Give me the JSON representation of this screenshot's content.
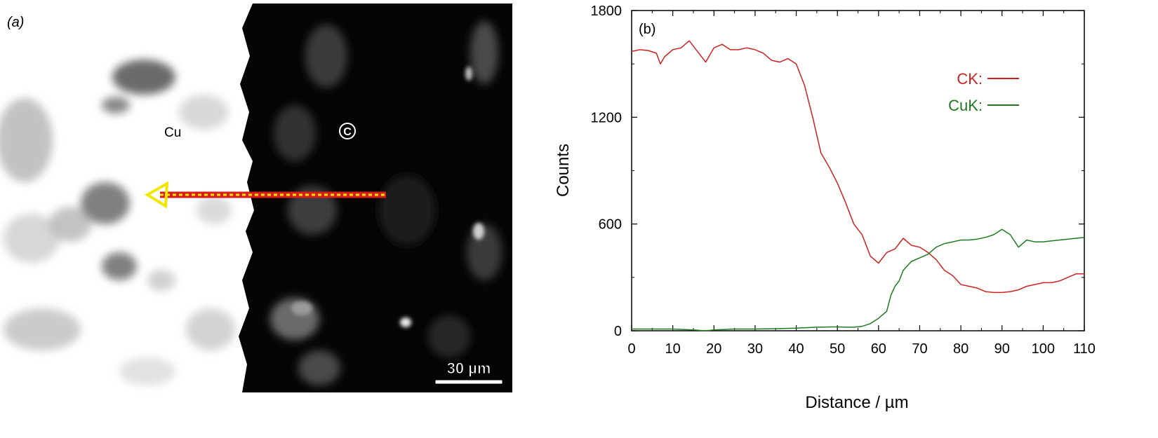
{
  "panel_a": {
    "label": "(a)",
    "left_phase_label": "Cu",
    "right_phase_label": "C",
    "scale_bar_label": "30 µm",
    "colors": {
      "background": "#ffffff",
      "dark_region": "#050505",
      "line_red": "#d81c1c",
      "line_yellow": "#ffe600",
      "arrow_yellow": "#f2e600"
    }
  },
  "chart_data": {
    "type": "line",
    "panel_label": "(b)",
    "xlabel": "Distance / µm",
    "ylabel": "Counts",
    "xlim": [
      0,
      110
    ],
    "ylim": [
      0,
      1800
    ],
    "xticks": [
      "0",
      "10",
      "20",
      "30",
      "40",
      "50",
      "60",
      "70",
      "80",
      "90",
      "100",
      "110"
    ],
    "yticks": [
      "0",
      "600",
      "1200",
      "1800"
    ],
    "grid": false,
    "legend": "top-right",
    "series": [
      {
        "name": "CK:",
        "color": "#cc2222",
        "x": [
          0,
          2,
          4,
          6,
          7,
          8,
          10,
          12,
          14,
          16,
          18,
          20,
          22,
          24,
          26,
          28,
          30,
          32,
          34,
          36,
          38,
          40,
          42,
          44,
          46,
          48,
          50,
          52,
          54,
          56,
          58,
          60,
          62,
          64,
          66,
          68,
          70,
          72,
          74,
          76,
          78,
          80,
          82,
          84,
          86,
          88,
          90,
          92,
          94,
          96,
          98,
          100,
          102,
          104,
          106,
          108,
          110
        ],
        "y": [
          1570,
          1580,
          1575,
          1560,
          1500,
          1540,
          1580,
          1590,
          1630,
          1570,
          1510,
          1590,
          1610,
          1580,
          1580,
          1590,
          1580,
          1560,
          1520,
          1510,
          1530,
          1500,
          1380,
          1200,
          1000,
          920,
          830,
          720,
          600,
          540,
          420,
          380,
          440,
          460,
          520,
          480,
          470,
          440,
          400,
          340,
          310,
          260,
          250,
          240,
          220,
          215,
          215,
          220,
          230,
          250,
          260,
          270,
          270,
          280,
          300,
          320,
          320
        ]
      },
      {
        "name": "CuK:",
        "color": "#1f7a1f",
        "x": [
          0,
          5,
          10,
          15,
          18,
          20,
          25,
          30,
          35,
          40,
          45,
          50,
          52,
          54,
          56,
          58,
          60,
          62,
          63,
          64,
          65,
          66,
          68,
          70,
          72,
          74,
          76,
          78,
          80,
          82,
          84,
          86,
          88,
          90,
          92,
          94,
          96,
          98,
          100,
          102,
          104,
          106,
          108,
          110
        ],
        "y": [
          10,
          10,
          10,
          5,
          0,
          5,
          10,
          10,
          12,
          15,
          20,
          22,
          20,
          20,
          25,
          40,
          70,
          110,
          200,
          250,
          280,
          340,
          390,
          410,
          430,
          470,
          490,
          500,
          510,
          510,
          515,
          525,
          540,
          570,
          540,
          470,
          510,
          500,
          500,
          505,
          510,
          515,
          520,
          525
        ]
      }
    ]
  }
}
